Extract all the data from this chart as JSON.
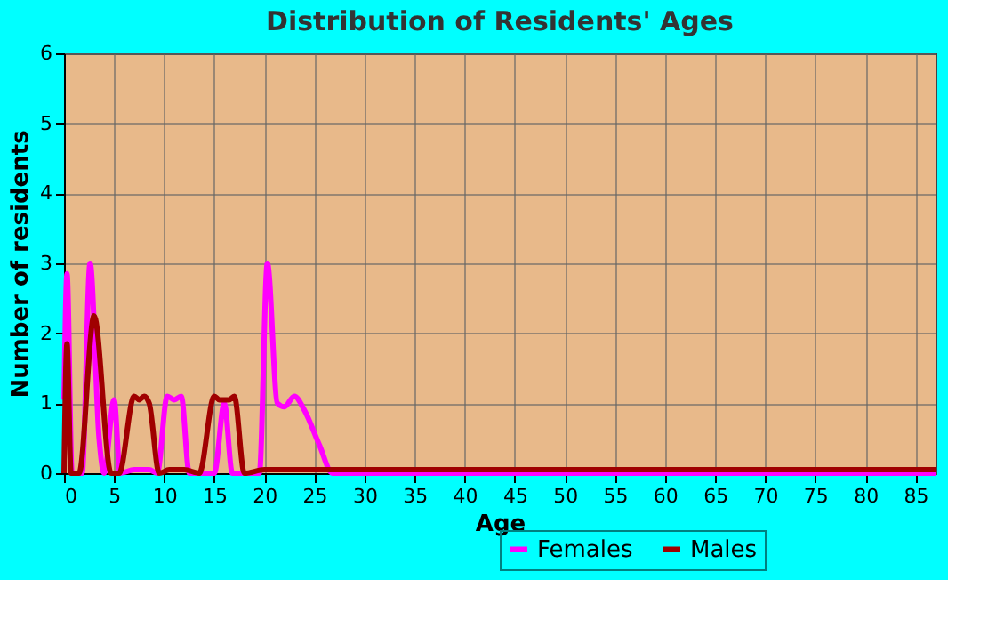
{
  "chart_data": {
    "type": "line",
    "title": "Distribution of Residents' Ages",
    "xlabel": "Age",
    "ylabel": "Number of residents",
    "xlim": [
      0,
      87
    ],
    "xticks": [
      0,
      5,
      10,
      15,
      20,
      25,
      30,
      35,
      40,
      45,
      50,
      55,
      60,
      65,
      70,
      75,
      80,
      85
    ],
    "ylim": [
      0,
      6
    ],
    "yticks": [
      0,
      1,
      2,
      3,
      4,
      5,
      6
    ],
    "grid": true,
    "legend": "bottom right",
    "series": [
      {
        "name": "Females",
        "color": "#ff00ff",
        "x": [
          0,
          0.3,
          0.8,
          1.8,
          2.6,
          3.5,
          4,
          5,
          5.6,
          7,
          8.5,
          9.3,
          10.3,
          11,
          11.7,
          12.5,
          15,
          16,
          16.8,
          19.5,
          20.3,
          21.3,
          22,
          23,
          24,
          25.5,
          26.8,
          87
        ],
        "values": [
          1.05,
          2.85,
          0,
          0,
          3,
          0.5,
          0,
          1.05,
          0,
          0.05,
          0.05,
          0,
          1.1,
          1.05,
          1.1,
          0,
          0,
          1,
          0,
          0,
          3,
          1,
          0.95,
          1.1,
          0.9,
          0.4,
          0,
          0
        ]
      },
      {
        "name": "Males",
        "color": "#a00000",
        "x": [
          0,
          0.3,
          0.7,
          1.5,
          3,
          4.7,
          5.5,
          7,
          7.5,
          8,
          8.5,
          9.5,
          10.5,
          12,
          13.5,
          15,
          15.5,
          16,
          16.5,
          17,
          18,
          20,
          87
        ],
        "values": [
          0,
          1.85,
          0,
          0,
          2.25,
          0,
          0,
          1.1,
          1.05,
          1.1,
          1,
          0,
          0.05,
          0.05,
          0,
          1.1,
          1.05,
          1.05,
          1.05,
          1.1,
          0,
          0.05,
          0.05
        ]
      }
    ]
  }
}
